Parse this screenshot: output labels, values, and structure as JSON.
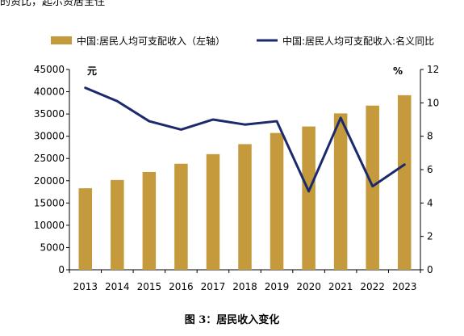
{
  "top_text": "的资比，起示资居全住",
  "caption": "图 3：居民收入变化",
  "chart_data": {
    "type": "bar",
    "categories": [
      "2013",
      "2014",
      "2015",
      "2016",
      "2017",
      "2018",
      "2019",
      "2020",
      "2021",
      "2022",
      "2023"
    ],
    "series": [
      {
        "name": "中国:居民人均可支配收入（左轴）",
        "type": "bar",
        "axis": "left",
        "values": [
          18311,
          20167,
          21966,
          23821,
          25974,
          28228,
          30733,
          32189,
          35128,
          36883,
          39218
        ]
      },
      {
        "name": "中国:居民人均可支配收入:名义同比",
        "type": "line",
        "axis": "right",
        "values": [
          10.9,
          10.1,
          8.9,
          8.4,
          9.0,
          8.7,
          8.9,
          4.7,
          9.1,
          5.0,
          6.3
        ]
      }
    ],
    "y_left": {
      "unit": "元",
      "range": [
        0,
        45000
      ],
      "ticks": [
        "0",
        "5000",
        "10000",
        "15000",
        "20000",
        "25000",
        "30000",
        "35000",
        "40000",
        "45000"
      ]
    },
    "y_right": {
      "unit": "%",
      "range": [
        0,
        12
      ],
      "ticks": [
        "0",
        "2",
        "4",
        "6",
        "8",
        "10",
        "12"
      ]
    },
    "legend": "top",
    "grid": false,
    "colors": {
      "bar": "#C49A3C",
      "line": "#1B2A6B"
    }
  }
}
